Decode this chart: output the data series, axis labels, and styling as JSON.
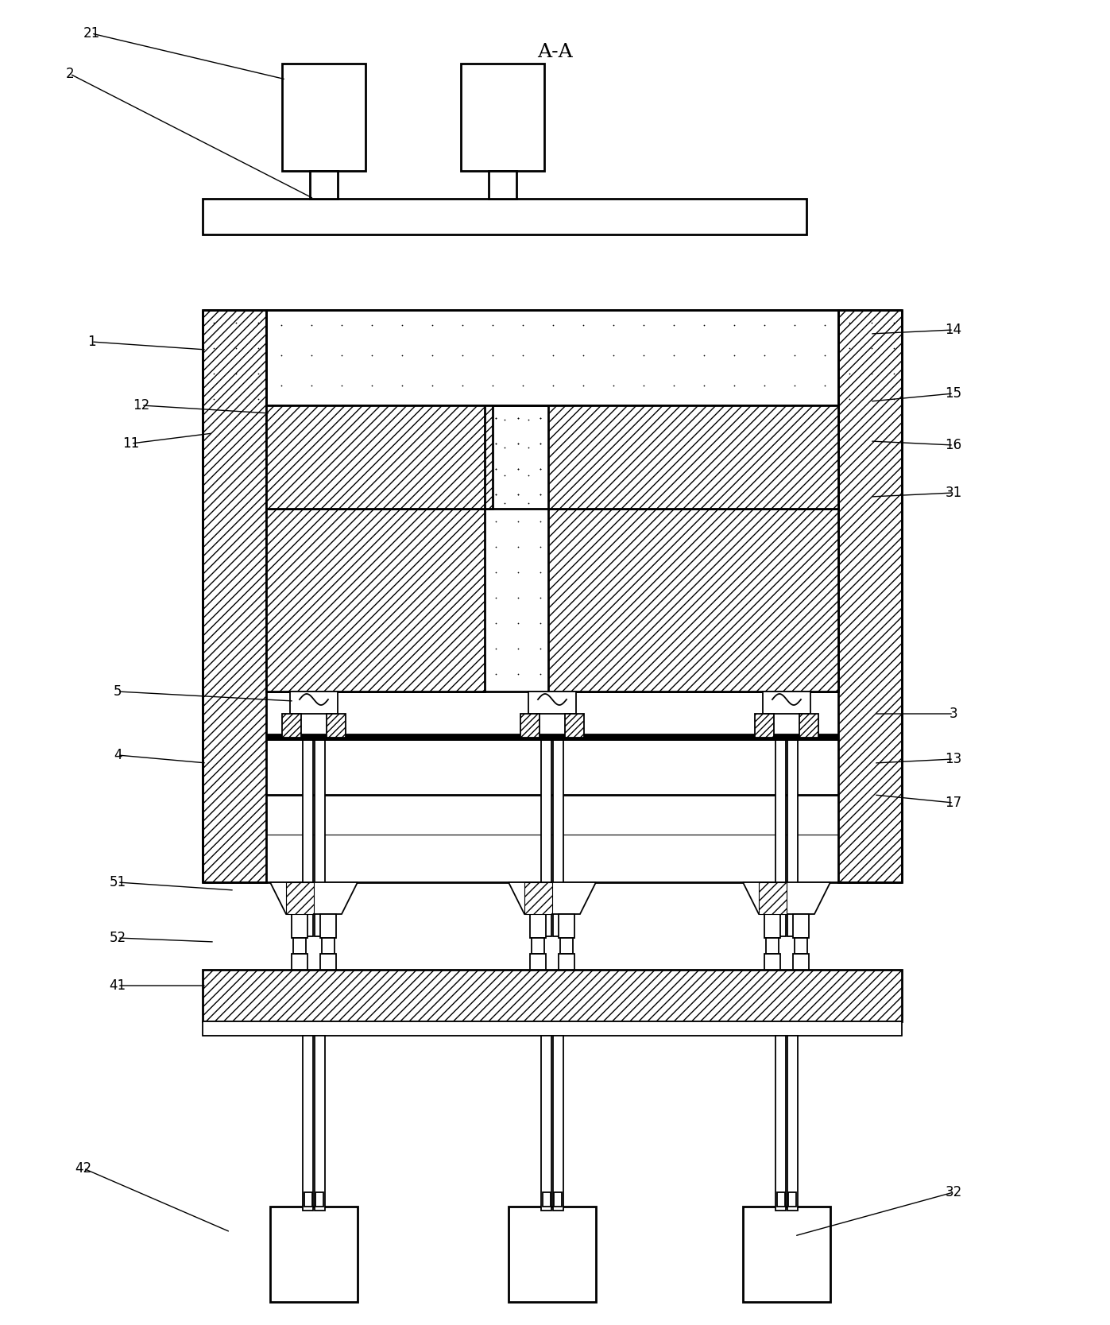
{
  "bg": "#ffffff",
  "lc": "#000000",
  "title": "A-A",
  "fw": 13.97,
  "fh": 16.67,
  "dpi": 100
}
